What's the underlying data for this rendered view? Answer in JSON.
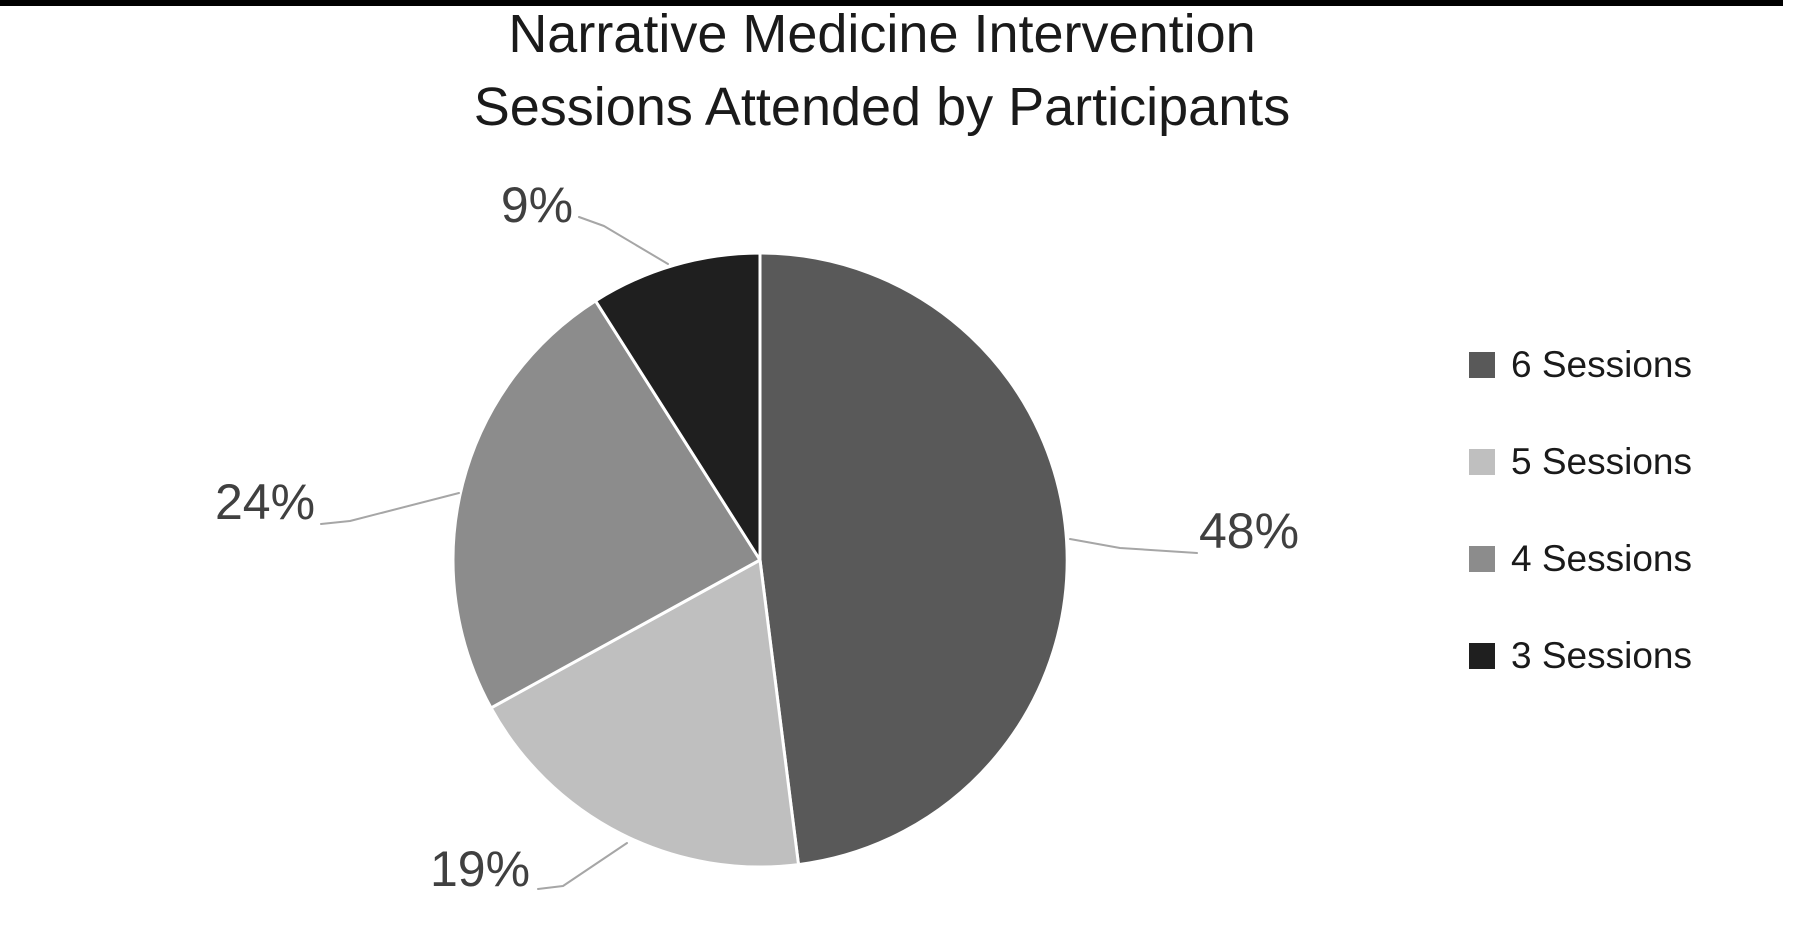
{
  "page": {
    "background": "#ffffff",
    "top_bar_color": "#000000"
  },
  "title": {
    "line1": "Narrative Medicine Intervention",
    "line2": "Sessions Attended by Participants"
  },
  "chart_data": {
    "type": "pie",
    "title": "Narrative Medicine Intervention Sessions Attended by Participants",
    "start_angle_deg": 0,
    "direction": "clockwise",
    "legend_position": "right",
    "data_labels": "percent shown outside slices with leader lines",
    "title_color": "#1a1a1a",
    "label_color": "#404040",
    "leader_line_color": "#a6a6a6",
    "legend_text_color": "#1a1a1a",
    "slice_border_color": "#ffffff",
    "series": [
      {
        "name": "6 Sessions",
        "value": 48,
        "label": "48%",
        "color": "#595959"
      },
      {
        "name": "5 Sessions",
        "value": 19,
        "label": "19%",
        "color": "#bfbfbf"
      },
      {
        "name": "4 Sessions",
        "value": 24,
        "label": "24%",
        "color": "#8c8c8c"
      },
      {
        "name": "3 Sessions",
        "value": 9,
        "label": "9%",
        "color": "#1f1f1f"
      }
    ]
  }
}
